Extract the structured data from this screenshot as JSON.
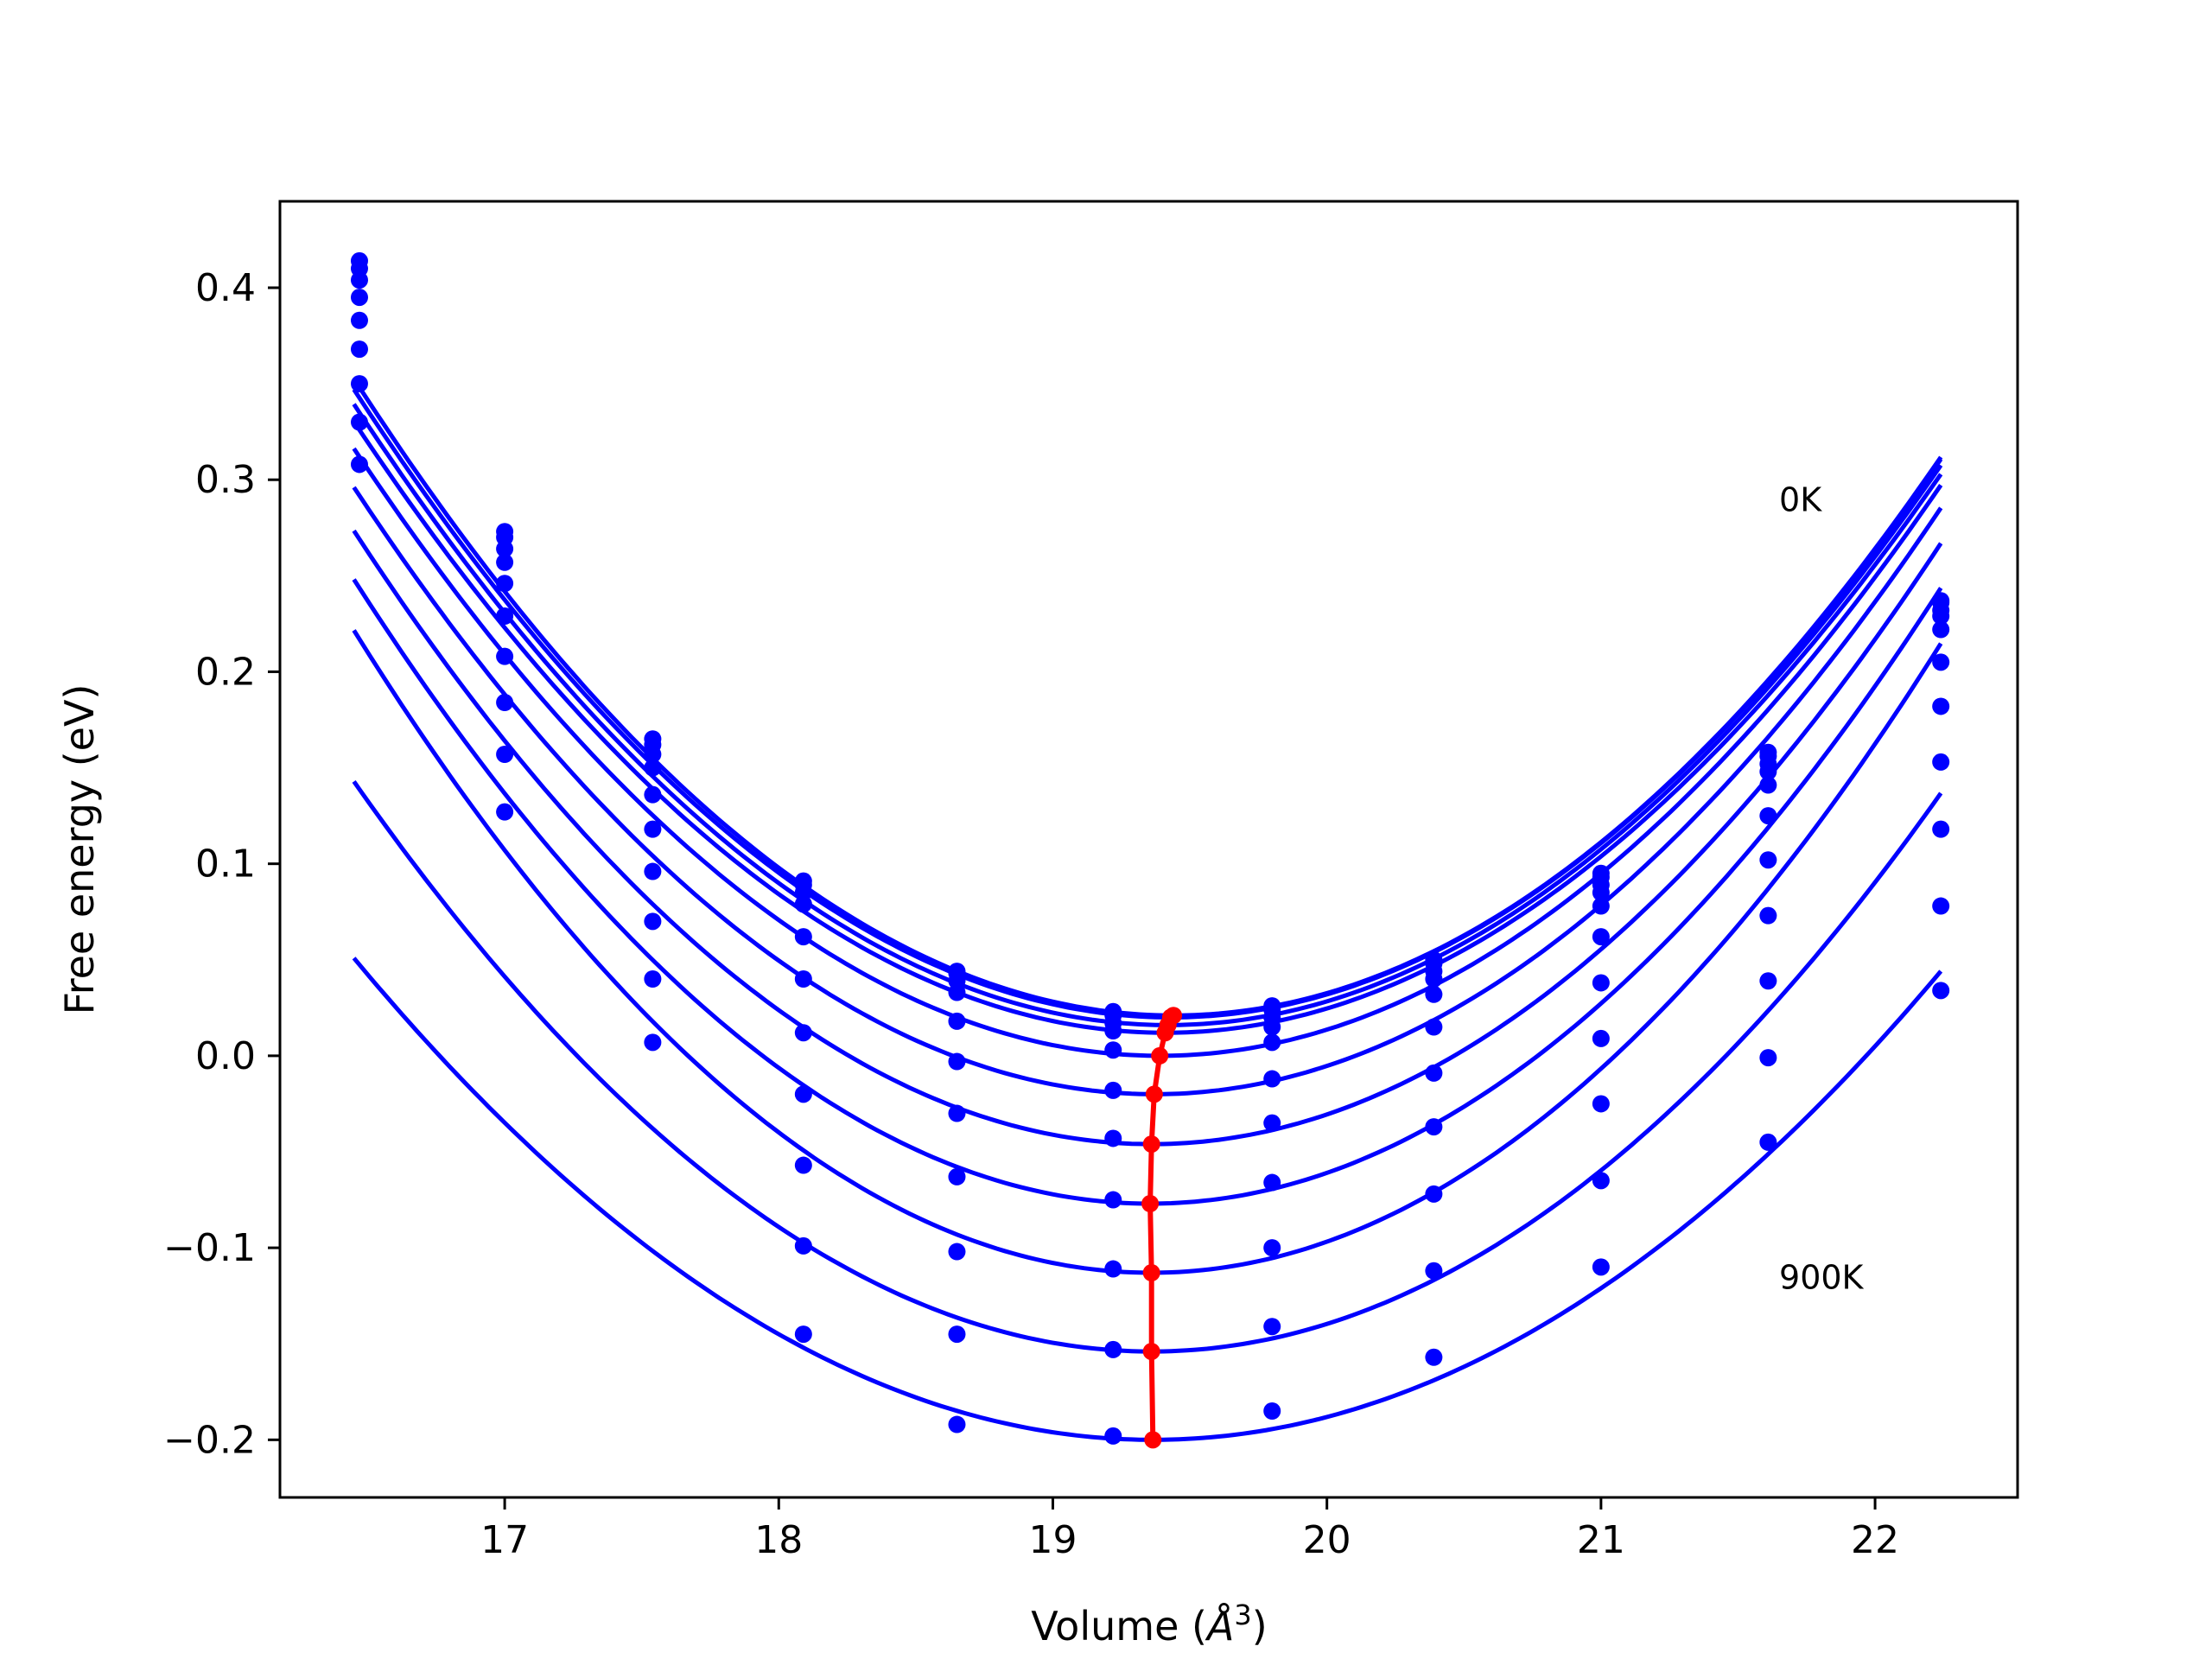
{
  "chart_data": {
    "type": "scatter",
    "xlabel": "Volume (Å³)",
    "xlabel_main": "Volume (",
    "xlabel_unit": "Å",
    "xlabel_sup": "3",
    "xlabel_close": ")",
    "ylabel": "Free energy (eV)",
    "xlim": [
      16.18,
      22.52
    ],
    "ylim": [
      -0.23,
      0.445
    ],
    "xticks": [
      17,
      18,
      19,
      20,
      21,
      22
    ],
    "yticks": [
      -0.2,
      -0.1,
      0.0,
      0.1,
      0.2,
      0.3,
      0.4
    ],
    "ytick_labels": [
      "−0.2",
      "−0.1",
      "0.0",
      "0.1",
      "0.2",
      "0.3",
      "0.4"
    ],
    "xtick_labels": [
      "17",
      "18",
      "19",
      "20",
      "21",
      "22"
    ],
    "grid": false,
    "annotations": [
      {
        "text": "0K",
        "x": 21.65,
        "y": 0.29
      },
      {
        "text": "900K",
        "x": 21.65,
        "y": -0.115
      }
    ],
    "colors": {
      "points": "#0000ff",
      "fit_lines": "#0000ff",
      "minimum_path": "#ff0000"
    },
    "x": [
      16.47,
      17.0,
      17.54,
      18.09,
      18.65,
      19.22,
      19.8,
      20.39,
      21.0,
      21.61,
      22.24
    ],
    "series": [
      {
        "values": [
          0.414,
          0.273,
          0.165,
          0.091,
          0.044,
          0.023,
          0.026,
          0.05,
          0.095,
          0.158,
          0.237
        ],
        "fit_min": {
          "x": 19.44,
          "y": 0.021
        }
      },
      {
        "values": [
          0.41,
          0.27,
          0.162,
          0.089,
          0.043,
          0.021,
          0.024,
          0.048,
          0.093,
          0.156,
          0.236
        ],
        "fit_min": {
          "x": 19.43,
          "y": 0.02
        }
      },
      {
        "values": [
          0.404,
          0.264,
          0.157,
          0.085,
          0.039,
          0.017,
          0.02,
          0.044,
          0.089,
          0.152,
          0.232
        ],
        "fit_min": {
          "x": 19.42,
          "y": 0.016
        }
      },
      {
        "values": [
          0.395,
          0.257,
          0.15,
          0.079,
          0.033,
          0.013,
          0.015,
          0.04,
          0.085,
          0.148,
          0.229
        ],
        "fit_min": {
          "x": 19.41,
          "y": 0.012
        }
      },
      {
        "values": [
          0.383,
          0.246,
          0.136,
          0.062,
          0.018,
          0.003,
          0.007,
          0.032,
          0.078,
          0.141,
          0.222
        ],
        "fit_min": {
          "x": 19.39,
          "y": 0.0
        }
      },
      {
        "values": [
          0.368,
          0.229,
          0.118,
          0.04,
          -0.003,
          -0.018,
          -0.012,
          0.015,
          0.062,
          0.125,
          0.205
        ],
        "fit_min": {
          "x": 19.37,
          "y": -0.02
        }
      },
      {
        "values": [
          0.35,
          0.208,
          0.096,
          0.012,
          -0.03,
          -0.043,
          -0.035,
          -0.009,
          0.038,
          0.102,
          0.182
        ],
        "fit_min": {
          "x": 19.36,
          "y": -0.046
        }
      },
      {
        "values": [
          0.33,
          0.184,
          0.07,
          -0.02,
          -0.063,
          -0.075,
          -0.066,
          -0.037,
          0.009,
          0.073,
          0.153
        ],
        "fit_min": {
          "x": 19.355,
          "y": -0.077
        }
      },
      {
        "values": [
          0.308,
          0.157,
          0.04,
          -0.057,
          -0.102,
          -0.111,
          -0.1,
          -0.072,
          -0.025,
          0.039,
          0.118
        ],
        "fit_min": {
          "x": 19.36,
          "y": -0.113
        }
      },
      {
        "values": [
          null,
          0.127,
          0.007,
          -0.099,
          -0.145,
          -0.153,
          -0.141,
          -0.112,
          -0.065,
          -0.001,
          0.078
        ],
        "fit_min": {
          "x": 19.36,
          "y": -0.154
        }
      },
      {
        "values": [
          null,
          null,
          null,
          -0.145,
          -0.192,
          -0.198,
          -0.185,
          -0.157,
          -0.11,
          -0.045,
          0.034
        ],
        "fit_min": {
          "x": 19.365,
          "y": -0.2
        }
      }
    ]
  }
}
